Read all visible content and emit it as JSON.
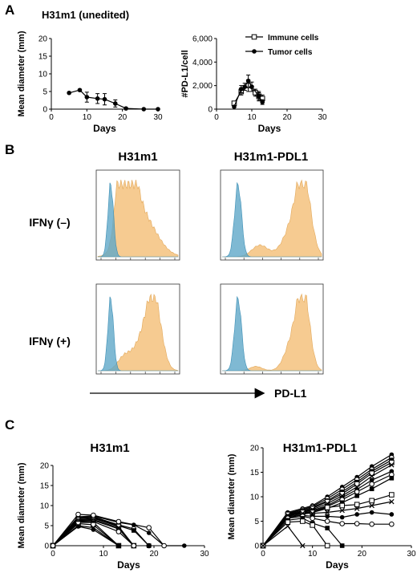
{
  "panels": {
    "A": "A",
    "B": "B",
    "C": "C"
  },
  "panel_a": {
    "title": "H31m1 (unedited)",
    "legend": {
      "immune": "Immune cells",
      "tumor": "Tumor cells"
    }
  },
  "panel_b": {
    "col1": "H31m1",
    "col2": "H31m1-PDL1",
    "row1": "IFNγ (–)",
    "row2": "IFNγ (+)",
    "arrow_label": "PD-L1",
    "colors": {
      "isotype": "#5fa8c8",
      "stain": "#f4c27e"
    }
  },
  "panel_c": {
    "title_left": "H31m1",
    "title_right": "H31m1-PDL1"
  },
  "chart_data": [
    {
      "id": "A1",
      "type": "line",
      "title": "H31m1 (unedited)",
      "xlabel": "Days",
      "ylabel": "Mean diameter (mm)",
      "xlim": [
        0,
        30
      ],
      "ylim": [
        0,
        20
      ],
      "xticks": [
        0,
        10,
        20,
        30
      ],
      "yticks": [
        0,
        5,
        10,
        15,
        20
      ],
      "series": [
        {
          "x": [
            5,
            8,
            10,
            13,
            15,
            18,
            21,
            26,
            30
          ],
          "y": [
            4.6,
            5.4,
            3.4,
            3.0,
            2.8,
            1.6,
            0.2,
            0,
            0
          ],
          "err": [
            0,
            0.2,
            1.4,
            1.4,
            1.6,
            1.0,
            0,
            0,
            0
          ]
        }
      ]
    },
    {
      "id": "A2",
      "type": "line",
      "xlabel": "Days",
      "ylabel": "#PD-L1/cell",
      "xlim": [
        0,
        30
      ],
      "ylim": [
        0,
        6000
      ],
      "xticks": [
        0,
        10,
        20,
        30
      ],
      "yticks": [
        "0",
        "2,000",
        "4,000",
        "6,000"
      ],
      "legend_position": "top-right",
      "series": [
        {
          "name": "Immune cells",
          "marker": "open-square",
          "x": [
            5,
            7,
            9,
            11,
            12,
            13
          ],
          "y": [
            500,
            1500,
            2000,
            1400,
            1100,
            900
          ],
          "err": [
            100,
            300,
            500,
            300,
            400,
            300
          ]
        },
        {
          "name": "Tumor cells",
          "marker": "filled-circle",
          "x": [
            5,
            7,
            8,
            9,
            10,
            12,
            13
          ],
          "y": [
            200,
            1700,
            1900,
            2400,
            1900,
            1100,
            600
          ],
          "err": [
            50,
            300,
            300,
            500,
            400,
            300,
            200
          ]
        }
      ]
    },
    {
      "id": "C1",
      "type": "line",
      "title": "H31m1",
      "xlabel": "Days",
      "ylabel": "Mean diameter (mm)",
      "xlim": [
        0,
        30
      ],
      "ylim": [
        0,
        20
      ],
      "xticks": [
        0,
        10,
        20,
        30
      ],
      "yticks": [
        0,
        5,
        10,
        15,
        20
      ],
      "series": [
        {
          "x": [
            0,
            5,
            8,
            13,
            16,
            19,
            22,
            26
          ],
          "y": [
            0,
            7.2,
            7.4,
            5.8,
            5.2,
            3.2,
            0,
            0
          ]
        },
        {
          "x": [
            0,
            5,
            8,
            13,
            16,
            19
          ],
          "y": [
            0,
            7.0,
            7.2,
            5.2,
            4.2,
            0
          ]
        },
        {
          "x": [
            0,
            5,
            8,
            13,
            16,
            19
          ],
          "y": [
            0,
            6.8,
            7.0,
            5.0,
            3.8,
            0
          ]
        },
        {
          "x": [
            0,
            5,
            8,
            13,
            16
          ],
          "y": [
            0,
            6.5,
            6.8,
            4.8,
            0
          ]
        },
        {
          "x": [
            0,
            5,
            8,
            13,
            16
          ],
          "y": [
            0,
            6.4,
            6.5,
            4.5,
            0
          ]
        },
        {
          "x": [
            0,
            5,
            8,
            13,
            16
          ],
          "y": [
            0,
            6.2,
            6.3,
            4.2,
            0
          ]
        },
        {
          "x": [
            0,
            5,
            8,
            13,
            16
          ],
          "y": [
            0,
            6.0,
            6.0,
            3.5,
            0
          ]
        },
        {
          "x": [
            0,
            5,
            8,
            13
          ],
          "y": [
            0,
            5.8,
            5.8,
            0
          ]
        },
        {
          "x": [
            0,
            5,
            8,
            13
          ],
          "y": [
            0,
            5.5,
            5.2,
            0
          ]
        },
        {
          "x": [
            0,
            5,
            8,
            13
          ],
          "y": [
            0,
            5.0,
            4.5,
            0
          ]
        },
        {
          "x": [
            0,
            5,
            8,
            13
          ],
          "y": [
            0,
            4.8,
            4.0,
            0
          ]
        },
        {
          "x": [
            0,
            5,
            8,
            13,
            19,
            22
          ],
          "y": [
            0,
            7.8,
            7.6,
            6.0,
            4.5,
            0
          ]
        }
      ]
    },
    {
      "id": "C2",
      "type": "line",
      "title": "H31m1-PDL1",
      "xlabel": "Days",
      "ylabel": "Mean diameter (mm)",
      "xlim": [
        0,
        30
      ],
      "ylim": [
        0,
        20
      ],
      "xticks": [
        0,
        10,
        20,
        30
      ],
      "yticks": [
        0,
        5,
        10,
        15,
        20
      ],
      "series": [
        {
          "x": [
            0,
            5,
            8,
            10,
            13,
            16,
            19,
            22,
            26
          ],
          "y": [
            0,
            6.8,
            7.6,
            8.2,
            10.0,
            12.0,
            14.0,
            16.2,
            18.6
          ]
        },
        {
          "x": [
            0,
            5,
            8,
            10,
            13,
            16,
            19,
            22,
            26
          ],
          "y": [
            0,
            6.6,
            7.4,
            8.0,
            9.6,
            11.5,
            13.5,
            15.6,
            18.0
          ]
        },
        {
          "x": [
            0,
            5,
            8,
            10,
            13,
            16,
            19,
            22,
            26
          ],
          "y": [
            0,
            6.5,
            7.2,
            7.8,
            9.2,
            11.0,
            13.0,
            15.2,
            17.5
          ]
        },
        {
          "x": [
            0,
            5,
            8,
            10,
            13,
            16,
            19,
            22,
            26
          ],
          "y": [
            0,
            6.4,
            7.0,
            7.6,
            9.0,
            10.6,
            12.6,
            14.8,
            17.0
          ]
        },
        {
          "x": [
            0,
            5,
            8,
            10,
            13,
            16,
            19,
            22,
            26
          ],
          "y": [
            0,
            6.2,
            6.9,
            7.4,
            8.6,
            10.2,
            12.0,
            14.2,
            16.5
          ]
        },
        {
          "x": [
            0,
            5,
            8,
            10,
            13,
            16,
            19,
            22,
            26
          ],
          "y": [
            0,
            6.0,
            6.8,
            7.2,
            8.2,
            9.8,
            11.5,
            13.4,
            15.2
          ]
        },
        {
          "x": [
            0,
            5,
            8,
            10,
            13,
            16,
            19,
            22,
            26
          ],
          "y": [
            0,
            5.8,
            6.6,
            7.0,
            8.0,
            9.4,
            11.0,
            12.6,
            14.5
          ]
        },
        {
          "x": [
            0,
            5,
            8,
            10,
            13,
            16,
            19,
            22,
            26
          ],
          "y": [
            0,
            5.6,
            6.4,
            6.8,
            7.6,
            8.8,
            10.2,
            11.6,
            13.8
          ]
        },
        {
          "x": [
            0,
            5,
            8,
            10,
            13,
            16,
            19,
            22,
            26
          ],
          "y": [
            0,
            6.4,
            6.8,
            6.8,
            7.8,
            8.2,
            8.4,
            9.2,
            10.4
          ]
        },
        {
          "x": [
            0,
            5,
            8,
            10,
            13,
            16,
            19,
            22,
            26
          ],
          "y": [
            0,
            6.2,
            6.6,
            6.6,
            6.8,
            7.2,
            7.6,
            8.2,
            9.0
          ]
        },
        {
          "x": [
            0,
            5,
            8,
            10,
            13,
            16,
            19,
            22,
            26
          ],
          "y": [
            0,
            6.0,
            6.2,
            6.0,
            6.0,
            5.8,
            6.4,
            6.8,
            6.4
          ]
        },
        {
          "x": [
            0,
            5,
            8,
            10,
            13,
            16,
            19,
            22,
            26
          ],
          "y": [
            0,
            5.6,
            6.0,
            5.6,
            5.0,
            4.5,
            4.5,
            4.4,
            4.4
          ]
        },
        {
          "x": [
            0,
            5,
            8,
            10,
            13,
            16
          ],
          "y": [
            0,
            5.2,
            5.6,
            4.6,
            3.6,
            0
          ]
        },
        {
          "x": [
            0,
            5,
            8,
            10,
            13
          ],
          "y": [
            0,
            4.8,
            5.0,
            4.2,
            0
          ]
        },
        {
          "x": [
            0,
            5,
            8
          ],
          "y": [
            0,
            4.0,
            0
          ]
        }
      ]
    }
  ]
}
